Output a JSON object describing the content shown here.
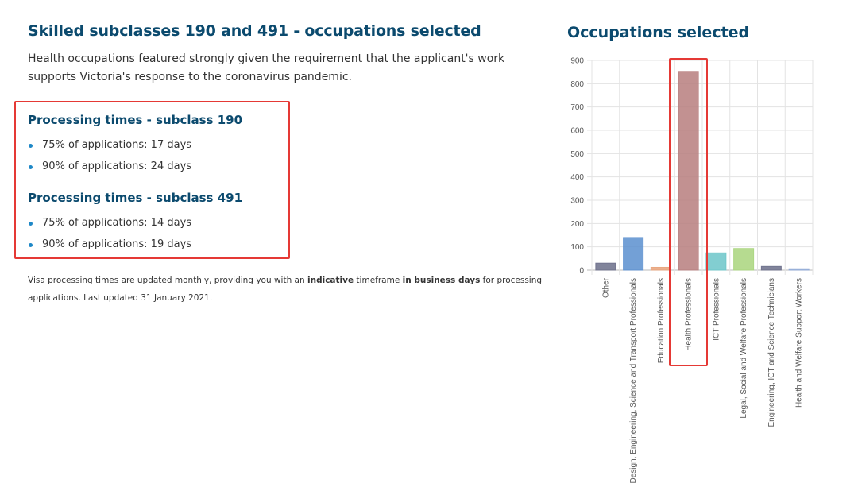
{
  "left": {
    "heading": "Skilled subclasses 190 and 491 - occupations selected",
    "intro": "Health occupations featured strongly given the requirement that the applicant's work supports Victoria's response to the coronavirus pandemic.",
    "sections": [
      {
        "title": "Processing times - subclass 190",
        "items": [
          "75% of applications: 17 days",
          "90% of applications: 24 days"
        ]
      },
      {
        "title": "Processing times - subclass 491",
        "items": [
          "75% of applications: 14 days",
          "90% of applications: 19 days"
        ]
      }
    ],
    "footnote": {
      "part1": "Visa processing times are updated monthly, providing you with an ",
      "bold1": "indicative",
      "part2": " timeframe ",
      "bold2": "in business days",
      "part3": " for processing applications. Last updated 31 January 2021."
    }
  },
  "chart_title": "Occupations selected",
  "chart_data": {
    "type": "bar",
    "title": "",
    "xlabel": "",
    "ylabel": "",
    "ylim": [
      0,
      900
    ],
    "yticks": [
      0,
      100,
      200,
      300,
      400,
      500,
      600,
      700,
      800,
      900
    ],
    "grid": true,
    "categories": [
      "Other",
      "Design, Engineering, Science and Transport Professionals",
      "Education Professionals",
      "Health Professionals",
      "ICT Professionals",
      "Legal, Social and Welfare Professionals",
      "Engineering, ICT and Science Technicians",
      "Health and Welfare Support Workers"
    ],
    "values": [
      30,
      140,
      12,
      853,
      74,
      93,
      16,
      6
    ],
    "colors": [
      "#6b6e8a",
      "#5b8fcf",
      "#e8a27a",
      "#b77e7e",
      "#6cc5c9",
      "#a9d57d",
      "#6b6e8a",
      "#8fa9d6"
    ]
  }
}
